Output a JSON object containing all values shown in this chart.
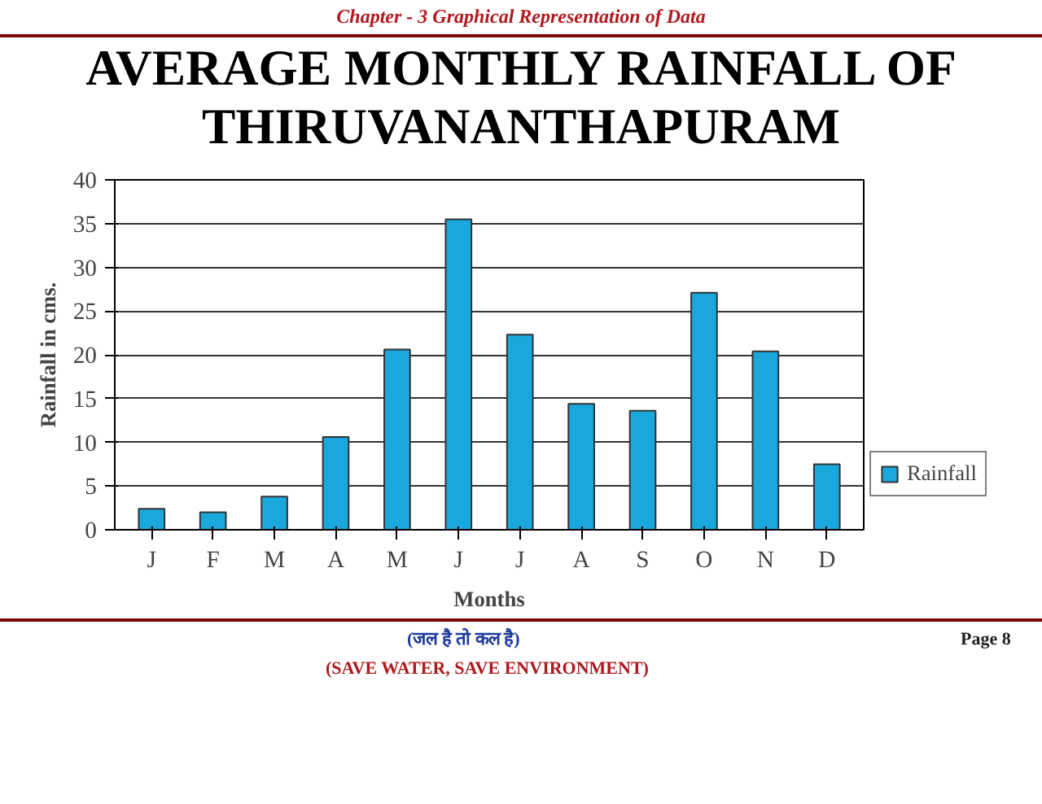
{
  "chart_data": {
    "type": "bar",
    "title": "AVERAGE MONTHLY RAINFALL OF THIRUVANANTHAPURAM",
    "xlabel": "Months",
    "ylabel": "Rainfall in cms.",
    "categories": [
      "J",
      "F",
      "M",
      "A",
      "M",
      "J",
      "J",
      "A",
      "S",
      "O",
      "N",
      "D"
    ],
    "series": [
      {
        "name": "Rainfall",
        "color": "#1aa7dc",
        "values": [
          2.4,
          2.0,
          3.8,
          10.6,
          20.6,
          35.5,
          22.3,
          14.4,
          13.6,
          27.1,
          20.4,
          7.5
        ]
      }
    ],
    "ylim": [
      0,
      40
    ],
    "yticks": [
      0,
      5,
      10,
      15,
      20,
      25,
      30,
      35,
      40
    ],
    "grid": "y",
    "legend": "bottom right",
    "annotations": [
      "Chapter - 3 Graphical Representation of Data",
      "(जल है तो कल है)",
      "(SAVE WATER, SAVE ENVIRONMENT)",
      "Page 8"
    ]
  }
}
